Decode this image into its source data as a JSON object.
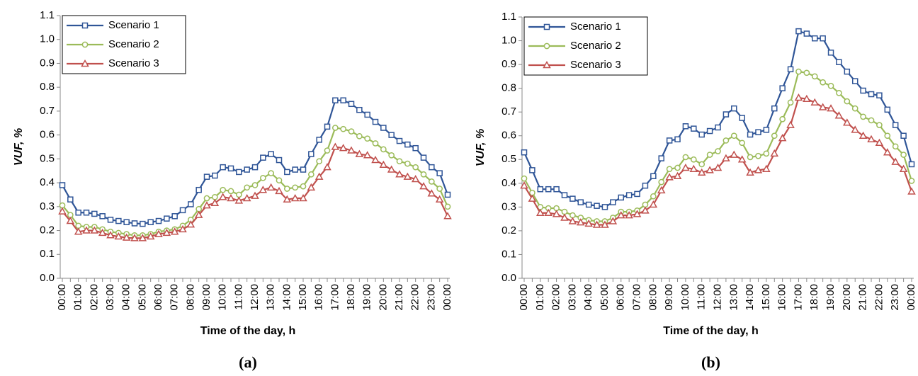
{
  "chart_data": [
    {
      "type": "line",
      "caption": "(a)",
      "y_label": "VUF, %",
      "x_label": "Time of the day, h",
      "categories": [
        "00:00",
        null,
        "01:00",
        null,
        "02:00",
        null,
        "03:00",
        null,
        "04:00",
        null,
        "05:00",
        null,
        "06:00",
        null,
        "07:00",
        null,
        "08:00",
        null,
        "09:00",
        null,
        "10:00",
        null,
        "11:00",
        null,
        "12:00",
        null,
        "13:00",
        null,
        "14:00",
        null,
        "15:00",
        null,
        "16:00",
        null,
        "17:00",
        null,
        "18:00",
        null,
        "19:00",
        null,
        "20:00",
        null,
        "21:00",
        null,
        "22:00",
        null,
        "23:00",
        null,
        "00:00"
      ],
      "ylim": [
        0,
        1.1
      ],
      "yticks": [
        {
          "value": 0,
          "label": "0.0"
        },
        0.1,
        0.2,
        0.3,
        0.4,
        0.5,
        0.6,
        0.7,
        0.8,
        0.9,
        {
          "value": 1,
          "label": "1.0"
        },
        1.1
      ],
      "legend": "upper left",
      "series": [
        {
          "name": "Scenario 1",
          "color": "#2f5597",
          "marker": "square",
          "values": [
            0.39,
            0.33,
            0.275,
            0.275,
            0.27,
            0.26,
            0.245,
            0.24,
            0.235,
            0.23,
            0.228,
            0.235,
            0.24,
            0.25,
            0.26,
            0.285,
            0.31,
            0.37,
            0.425,
            0.43,
            0.465,
            0.46,
            0.445,
            0.455,
            0.465,
            0.505,
            0.52,
            0.495,
            0.445,
            0.455,
            0.455,
            0.52,
            0.58,
            0.635,
            0.745,
            0.745,
            0.73,
            0.705,
            0.685,
            0.655,
            0.63,
            0.6,
            0.575,
            0.56,
            0.545,
            0.505,
            0.465,
            0.44,
            0.35
          ]
        },
        {
          "name": "Scenario 2",
          "color": "#9bbb59",
          "marker": "circle",
          "values": [
            0.305,
            0.265,
            0.22,
            0.215,
            0.215,
            0.205,
            0.195,
            0.19,
            0.185,
            0.18,
            0.18,
            0.185,
            0.195,
            0.2,
            0.205,
            0.22,
            0.245,
            0.29,
            0.335,
            0.34,
            0.37,
            0.365,
            0.35,
            0.38,
            0.39,
            0.42,
            0.44,
            0.41,
            0.375,
            0.38,
            0.385,
            0.435,
            0.49,
            0.535,
            0.63,
            0.625,
            0.615,
            0.595,
            0.585,
            0.565,
            0.54,
            0.515,
            0.49,
            0.48,
            0.465,
            0.435,
            0.405,
            0.375,
            0.3
          ]
        },
        {
          "name": "Scenario 3",
          "color": "#c0504d",
          "marker": "triangle",
          "values": [
            0.28,
            0.24,
            0.195,
            0.2,
            0.2,
            0.19,
            0.18,
            0.175,
            0.17,
            0.168,
            0.168,
            0.175,
            0.185,
            0.19,
            0.195,
            0.205,
            0.225,
            0.265,
            0.305,
            0.315,
            0.34,
            0.335,
            0.325,
            0.335,
            0.345,
            0.37,
            0.38,
            0.365,
            0.33,
            0.335,
            0.335,
            0.38,
            0.425,
            0.465,
            0.55,
            0.545,
            0.535,
            0.52,
            0.515,
            0.495,
            0.475,
            0.455,
            0.435,
            0.425,
            0.415,
            0.385,
            0.355,
            0.33,
            0.26
          ]
        }
      ]
    },
    {
      "type": "line",
      "caption": "(b)",
      "y_label": "VUF, %",
      "x_label": "Time of the day, h",
      "categories": [
        "00:00",
        null,
        "01:00",
        null,
        "02:00",
        null,
        "03:00",
        null,
        "04:00",
        null,
        "05:00",
        null,
        "06:00",
        null,
        "07:00",
        null,
        "08:00",
        null,
        "09:00",
        null,
        "10:00",
        null,
        "11:00",
        null,
        "12:00",
        null,
        "13:00",
        null,
        "14:00",
        null,
        "15:00",
        null,
        "16:00",
        null,
        "17:00",
        null,
        "18:00",
        null,
        "19:00",
        null,
        "20:00",
        null,
        "21:00",
        null,
        "22:00",
        null,
        "23:00",
        null,
        "00:00"
      ],
      "ylim": [
        0,
        1.1
      ],
      "yticks": [
        {
          "value": 0,
          "label": "0.0"
        },
        0.1,
        0.2,
        0.3,
        0.4,
        0.5,
        0.6,
        0.7,
        0.8,
        0.9,
        {
          "value": 1,
          "label": "1.0"
        },
        1.1
      ],
      "legend": "upper left",
      "series": [
        {
          "name": "Scenario 1",
          "color": "#2f5597",
          "marker": "square",
          "values": [
            0.53,
            0.455,
            0.375,
            0.375,
            0.375,
            0.35,
            0.335,
            0.32,
            0.31,
            0.305,
            0.3,
            0.32,
            0.34,
            0.35,
            0.355,
            0.39,
            0.43,
            0.505,
            0.58,
            0.585,
            0.64,
            0.63,
            0.605,
            0.62,
            0.635,
            0.69,
            0.715,
            0.675,
            0.605,
            0.615,
            0.625,
            0.715,
            0.8,
            0.88,
            1.04,
            1.03,
            1.01,
            1.01,
            0.95,
            0.91,
            0.87,
            0.83,
            0.79,
            0.775,
            0.77,
            0.71,
            0.645,
            0.6,
            0.48
          ]
        },
        {
          "name": "Scenario 2",
          "color": "#9bbb59",
          "marker": "circle",
          "values": [
            0.42,
            0.36,
            0.3,
            0.295,
            0.295,
            0.28,
            0.265,
            0.255,
            0.245,
            0.24,
            0.24,
            0.255,
            0.28,
            0.28,
            0.285,
            0.31,
            0.345,
            0.405,
            0.46,
            0.465,
            0.51,
            0.5,
            0.48,
            0.52,
            0.535,
            0.58,
            0.6,
            0.57,
            0.51,
            0.515,
            0.525,
            0.6,
            0.67,
            0.74,
            0.87,
            0.865,
            0.85,
            0.825,
            0.81,
            0.78,
            0.745,
            0.715,
            0.68,
            0.665,
            0.645,
            0.6,
            0.555,
            0.52,
            0.41
          ]
        },
        {
          "name": "Scenario 3",
          "color": "#c0504d",
          "marker": "triangle",
          "values": [
            0.39,
            0.335,
            0.275,
            0.275,
            0.27,
            0.255,
            0.24,
            0.235,
            0.23,
            0.225,
            0.225,
            0.24,
            0.265,
            0.265,
            0.27,
            0.285,
            0.31,
            0.37,
            0.425,
            0.43,
            0.465,
            0.46,
            0.445,
            0.455,
            0.465,
            0.505,
            0.52,
            0.5,
            0.445,
            0.455,
            0.46,
            0.525,
            0.59,
            0.645,
            0.76,
            0.755,
            0.74,
            0.72,
            0.715,
            0.685,
            0.655,
            0.625,
            0.6,
            0.585,
            0.57,
            0.53,
            0.49,
            0.46,
            0.365
          ]
        }
      ]
    }
  ]
}
